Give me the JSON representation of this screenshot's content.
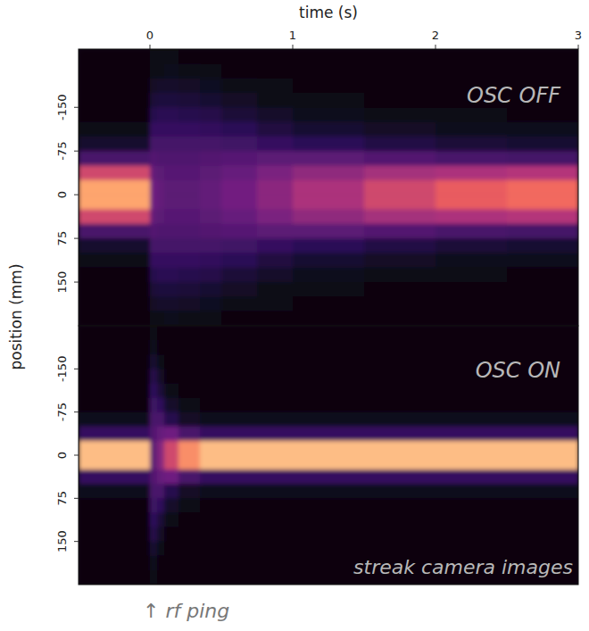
{
  "chart_data": {
    "type": "heatmap",
    "x_label": "time (s)",
    "y_label": "position (mm)",
    "xlim": [
      -0.5,
      3
    ],
    "xticks": [
      0,
      1,
      2,
      3
    ],
    "x": [
      -0.5,
      0,
      0.05,
      0.1,
      0.2,
      0.35,
      0.5,
      0.75,
      1,
      1.5,
      2,
      2.5,
      3
    ],
    "zlim": [
      0,
      1
    ],
    "annotations": [
      "streak camera images",
      "↑ rf ping"
    ],
    "panels": [
      {
        "title": "OSC OFF",
        "ylim": [
          -250,
          225
        ],
        "yticks": [
          -150,
          -75,
          0,
          75,
          150
        ],
        "y": [
          -250,
          -225,
          -200,
          -175,
          -150,
          -125,
          -100,
          -75,
          -50,
          -25,
          0,
          25,
          50,
          75,
          100,
          125,
          150,
          175,
          200,
          225
        ],
        "cells": [
          [
            0,
            0.01,
            0.01,
            0.01,
            0,
            0,
            0,
            0,
            0,
            0,
            0,
            0
          ],
          [
            0,
            0.02,
            0.02,
            0.03,
            0.02,
            0.01,
            0,
            0,
            0,
            0,
            0,
            0
          ],
          [
            0,
            0.05,
            0.06,
            0.06,
            0.05,
            0.04,
            0.02,
            0.01,
            0,
            0,
            0,
            0
          ],
          [
            0,
            0.1,
            0.11,
            0.11,
            0.1,
            0.08,
            0.05,
            0.02,
            0.01,
            0,
            0,
            0
          ],
          [
            0,
            0.15,
            0.16,
            0.16,
            0.15,
            0.14,
            0.1,
            0.06,
            0.03,
            0.01,
            0.01,
            0
          ],
          [
            0.02,
            0.2,
            0.2,
            0.2,
            0.2,
            0.19,
            0.17,
            0.12,
            0.08,
            0.05,
            0.03,
            0.03
          ],
          [
            0.07,
            0.24,
            0.24,
            0.24,
            0.24,
            0.24,
            0.23,
            0.2,
            0.17,
            0.13,
            0.1,
            0.08
          ],
          [
            0.25,
            0.28,
            0.27,
            0.27,
            0.27,
            0.28,
            0.29,
            0.3,
            0.3,
            0.28,
            0.25,
            0.24
          ],
          [
            0.6,
            0.32,
            0.3,
            0.29,
            0.29,
            0.3,
            0.33,
            0.38,
            0.43,
            0.48,
            0.5,
            0.52
          ],
          [
            0.85,
            0.35,
            0.32,
            0.3,
            0.3,
            0.32,
            0.36,
            0.42,
            0.5,
            0.6,
            0.68,
            0.72
          ],
          [
            0.85,
            0.35,
            0.32,
            0.3,
            0.3,
            0.32,
            0.36,
            0.42,
            0.5,
            0.6,
            0.68,
            0.72
          ],
          [
            0.6,
            0.32,
            0.3,
            0.29,
            0.29,
            0.3,
            0.33,
            0.38,
            0.43,
            0.48,
            0.5,
            0.52
          ],
          [
            0.25,
            0.28,
            0.27,
            0.27,
            0.27,
            0.28,
            0.29,
            0.3,
            0.3,
            0.28,
            0.25,
            0.24
          ],
          [
            0.07,
            0.24,
            0.24,
            0.24,
            0.24,
            0.24,
            0.23,
            0.2,
            0.17,
            0.13,
            0.1,
            0.08
          ],
          [
            0.02,
            0.2,
            0.2,
            0.2,
            0.2,
            0.19,
            0.17,
            0.12,
            0.08,
            0.05,
            0.03,
            0.03
          ],
          [
            0,
            0.15,
            0.16,
            0.16,
            0.15,
            0.14,
            0.1,
            0.06,
            0.03,
            0.01,
            0.01,
            0
          ],
          [
            0,
            0.1,
            0.11,
            0.11,
            0.1,
            0.08,
            0.05,
            0.02,
            0.01,
            0,
            0,
            0
          ],
          [
            0,
            0.05,
            0.06,
            0.06,
            0.05,
            0.04,
            0.02,
            0.01,
            0,
            0,
            0,
            0
          ],
          [
            0,
            0.02,
            0.02,
            0.03,
            0.02,
            0.01,
            0,
            0,
            0,
            0,
            0,
            0
          ]
        ]
      },
      {
        "title": "OSC ON",
        "ylim": [
          -225,
          225
        ],
        "yticks": [
          -150,
          -75,
          0,
          75,
          150
        ],
        "y": [
          -225,
          -200,
          -175,
          -150,
          -125,
          -100,
          -75,
          -50,
          -25,
          0,
          25,
          50,
          75,
          100,
          125,
          150,
          175,
          200,
          225
        ],
        "cells": [
          [
            0,
            0.01,
            0,
            0,
            0,
            0,
            0,
            0,
            0,
            0,
            0,
            0
          ],
          [
            0,
            0.03,
            0,
            0,
            0,
            0,
            0,
            0,
            0,
            0,
            0,
            0
          ],
          [
            0,
            0.08,
            0.02,
            0,
            0,
            0,
            0,
            0,
            0,
            0,
            0,
            0
          ],
          [
            0,
            0.14,
            0.05,
            0,
            0,
            0,
            0,
            0,
            0,
            0,
            0,
            0
          ],
          [
            0,
            0.18,
            0.1,
            0.02,
            0,
            0,
            0,
            0,
            0,
            0,
            0,
            0
          ],
          [
            0,
            0.22,
            0.18,
            0.06,
            0.01,
            0,
            0,
            0,
            0,
            0,
            0,
            0
          ],
          [
            0.03,
            0.25,
            0.25,
            0.15,
            0.05,
            0.03,
            0.03,
            0.03,
            0.03,
            0.03,
            0.03,
            0.03
          ],
          [
            0.2,
            0.28,
            0.33,
            0.35,
            0.25,
            0.2,
            0.2,
            0.2,
            0.2,
            0.2,
            0.2,
            0.2
          ],
          [
            0.9,
            0.3,
            0.4,
            0.6,
            0.8,
            0.9,
            0.9,
            0.9,
            0.9,
            0.9,
            0.9,
            0.9
          ],
          [
            0.9,
            0.3,
            0.4,
            0.6,
            0.8,
            0.9,
            0.9,
            0.9,
            0.9,
            0.9,
            0.9,
            0.9
          ],
          [
            0.2,
            0.28,
            0.33,
            0.35,
            0.25,
            0.2,
            0.2,
            0.2,
            0.2,
            0.2,
            0.2,
            0.2
          ],
          [
            0.03,
            0.25,
            0.25,
            0.15,
            0.05,
            0.03,
            0.03,
            0.03,
            0.03,
            0.03,
            0.03,
            0.03
          ],
          [
            0,
            0.22,
            0.18,
            0.06,
            0.01,
            0,
            0,
            0,
            0,
            0,
            0,
            0
          ],
          [
            0,
            0.18,
            0.1,
            0.02,
            0,
            0,
            0,
            0,
            0,
            0,
            0,
            0
          ],
          [
            0,
            0.14,
            0.05,
            0,
            0,
            0,
            0,
            0,
            0,
            0,
            0,
            0
          ],
          [
            0,
            0.08,
            0.02,
            0,
            0,
            0,
            0,
            0,
            0,
            0,
            0,
            0
          ],
          [
            0,
            0.03,
            0,
            0,
            0,
            0,
            0,
            0,
            0,
            0,
            0,
            0
          ],
          [
            0,
            0.01,
            0,
            0,
            0,
            0,
            0,
            0,
            0,
            0,
            0,
            0
          ]
        ]
      }
    ]
  }
}
